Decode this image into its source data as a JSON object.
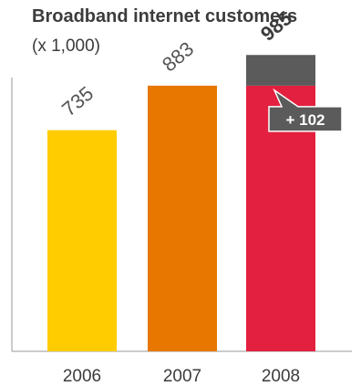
{
  "chart_data": {
    "type": "bar",
    "title": "Broadband internet customers",
    "subtitle": "(x 1,000)",
    "categories": [
      "2006",
      "2007",
      "2008"
    ],
    "values": [
      735,
      883,
      985
    ],
    "colors": [
      "#ffcc00",
      "#e87700",
      "#e3203f"
    ],
    "increment": {
      "category": "2008",
      "base": 883,
      "value": 102,
      "label": "+ 102",
      "color": "#5b5b5b"
    },
    "ylim": [
      0,
      1000
    ],
    "grid": false,
    "legend": "none"
  }
}
